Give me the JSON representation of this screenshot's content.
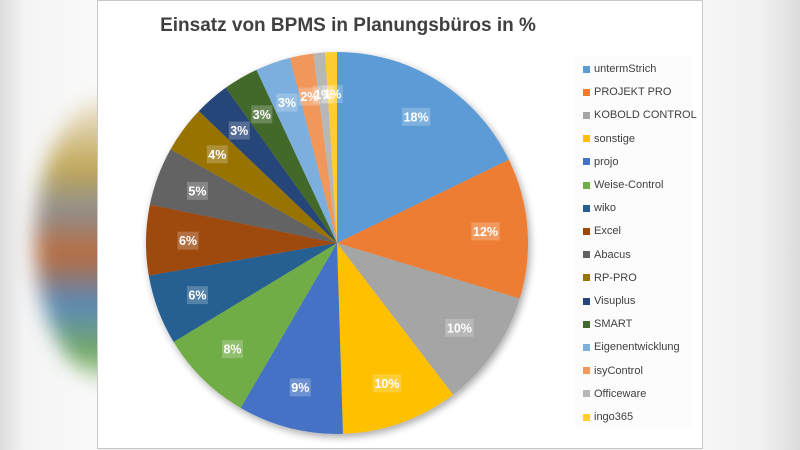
{
  "chart_data": {
    "type": "pie",
    "title": "Einsatz von BPMS in Planungsbüros in %",
    "legend_position": "right",
    "categories": [
      "untermStrich",
      "PROJEKT PRO",
      "KOBOLD CONTROL",
      "sonstige",
      "projo",
      "Weise-Control",
      "wiko",
      "Excel",
      "Abacus",
      "RP-PRO",
      "Visuplus",
      "SMART",
      "Eigenentwicklung",
      "isyControl",
      "Officeware",
      "ingo365"
    ],
    "values": [
      18,
      12,
      10,
      10,
      9,
      8,
      6,
      6,
      5,
      4,
      3,
      3,
      3,
      2,
      1,
      1
    ],
    "labels": [
      "18%",
      "12%",
      "10%",
      "10%",
      "9%",
      "8%",
      "6%",
      "6%",
      "5%",
      "4%",
      "3%",
      "3%",
      "3%",
      "2%",
      "1%",
      "1%"
    ],
    "colors": [
      "#5b9bd5",
      "#ed7d31",
      "#a5a5a5",
      "#ffc000",
      "#4472c4",
      "#70ad47",
      "#255e91",
      "#9e480e",
      "#636363",
      "#997300",
      "#264478",
      "#43682b",
      "#7cafdd",
      "#f1975a",
      "#b7b7b7",
      "#ffcd33"
    ],
    "start_angle_deg": 0,
    "direction": "clockwise"
  }
}
